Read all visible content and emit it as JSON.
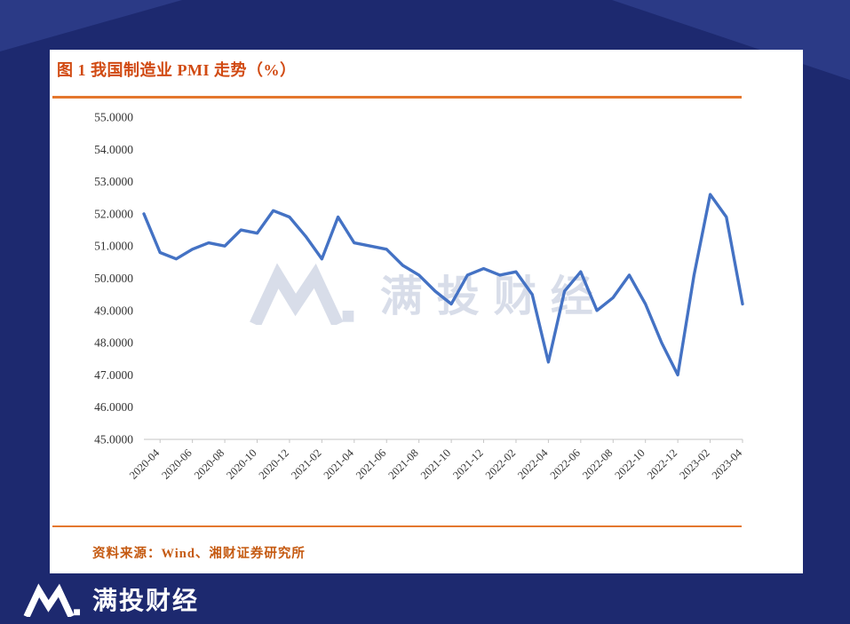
{
  "page": {
    "background_color": "#1d296f",
    "corner_accent_color": "#2b3a86"
  },
  "card": {
    "title": "图 1 我国制造业 PMI 走势（%）",
    "source": "资料来源：Wind、湘财证券研究所",
    "accent_rule_color": "#e4772e",
    "title_color": "#d14a12",
    "source_color": "#c55a11"
  },
  "watermark": {
    "text": "满投财经"
  },
  "brand": {
    "text": "满投财经"
  },
  "chart_data": {
    "type": "line",
    "title": "图 1 我国制造业 PMI 走势（%）",
    "xlabel": "",
    "ylabel": "",
    "ylim": [
      45,
      55
    ],
    "ytick_step": 1,
    "ytick_decimals": 4,
    "grid": false,
    "legend_position": "none",
    "xtick_shown_every": 2,
    "xtick_first_shown_index": 1,
    "x": [
      "2020-03",
      "2020-04",
      "2020-05",
      "2020-06",
      "2020-07",
      "2020-08",
      "2020-09",
      "2020-10",
      "2020-11",
      "2020-12",
      "2021-01",
      "2021-02",
      "2021-03",
      "2021-04",
      "2021-05",
      "2021-06",
      "2021-07",
      "2021-08",
      "2021-09",
      "2021-10",
      "2021-11",
      "2021-12",
      "2022-01",
      "2022-02",
      "2022-03",
      "2022-04",
      "2022-05",
      "2022-06",
      "2022-07",
      "2022-08",
      "2022-09",
      "2022-10",
      "2022-11",
      "2022-12",
      "2023-01",
      "2023-02",
      "2023-03",
      "2023-04"
    ],
    "series": [
      {
        "name": "PMI",
        "color": "#4472c4",
        "values": [
          52.0,
          50.8,
          50.6,
          50.9,
          51.1,
          51.0,
          51.5,
          51.4,
          52.1,
          51.9,
          51.3,
          50.6,
          51.9,
          51.1,
          51.0,
          50.9,
          50.4,
          50.1,
          49.6,
          49.2,
          50.1,
          50.3,
          50.1,
          50.2,
          49.5,
          47.4,
          49.6,
          50.2,
          49.0,
          49.4,
          50.1,
          49.2,
          48.0,
          47.0,
          50.1,
          52.6,
          51.9,
          49.2
        ]
      }
    ]
  }
}
